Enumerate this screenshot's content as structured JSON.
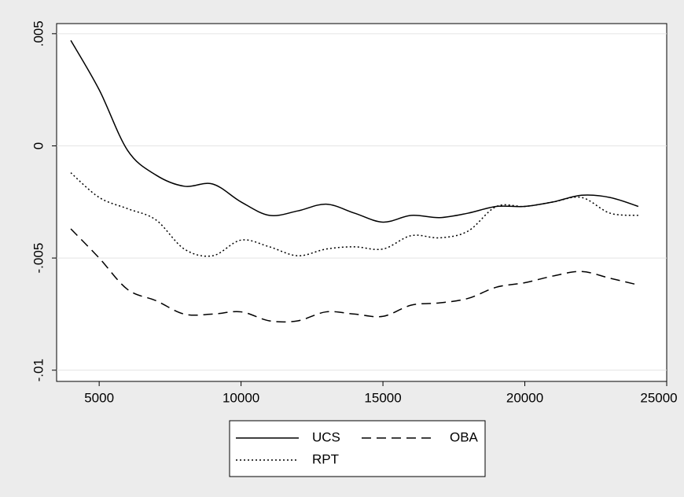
{
  "chart_data": {
    "type": "line",
    "x": [
      4000,
      5000,
      6000,
      7000,
      8000,
      9000,
      10000,
      11000,
      12000,
      13000,
      14000,
      15000,
      16000,
      17000,
      18000,
      19000,
      20000,
      21000,
      22000,
      23000,
      24000
    ],
    "series": [
      {
        "name": "UCS",
        "color": "#000000",
        "dash": "solid",
        "values": [
          0.0047,
          0.0025,
          -0.0002,
          -0.0013,
          -0.0018,
          -0.0017,
          -0.0025,
          -0.0031,
          -0.0029,
          -0.0026,
          -0.003,
          -0.0034,
          -0.0031,
          -0.0032,
          -0.003,
          -0.0027,
          -0.0027,
          -0.0025,
          -0.0022,
          -0.0023,
          -0.0027
        ]
      },
      {
        "name": "OBA",
        "color": "#000000",
        "dash": "dashed",
        "values": [
          -0.0037,
          -0.005,
          -0.0064,
          -0.0069,
          -0.0075,
          -0.0075,
          -0.0074,
          -0.0078,
          -0.0078,
          -0.0074,
          -0.0075,
          -0.0076,
          -0.0071,
          -0.007,
          -0.0068,
          -0.0063,
          -0.0061,
          -0.0058,
          -0.0056,
          -0.0059,
          -0.0062
        ]
      },
      {
        "name": "RPT",
        "color": "#000000",
        "dash": "dotted",
        "values": [
          -0.0012,
          -0.0023,
          -0.0028,
          -0.0033,
          -0.0046,
          -0.0049,
          -0.0042,
          -0.0045,
          -0.0049,
          -0.0046,
          -0.0045,
          -0.0046,
          -0.004,
          -0.0041,
          -0.0038,
          -0.0027,
          -0.0027,
          -0.0025,
          -0.0023,
          -0.003,
          -0.0031
        ]
      }
    ],
    "xlim": [
      3500,
      25000
    ],
    "xticks": [
      5000,
      10000,
      15000,
      20000,
      25000
    ],
    "ylim": [
      -0.0105,
      0.00545
    ],
    "yticks": [
      {
        "value": 0.005,
        "label": ".005"
      },
      0,
      {
        "value": -0.005,
        "label": "-.005"
      },
      {
        "value": -0.01,
        "label": "-.01"
      }
    ],
    "grid": true,
    "legend": "bottom"
  }
}
